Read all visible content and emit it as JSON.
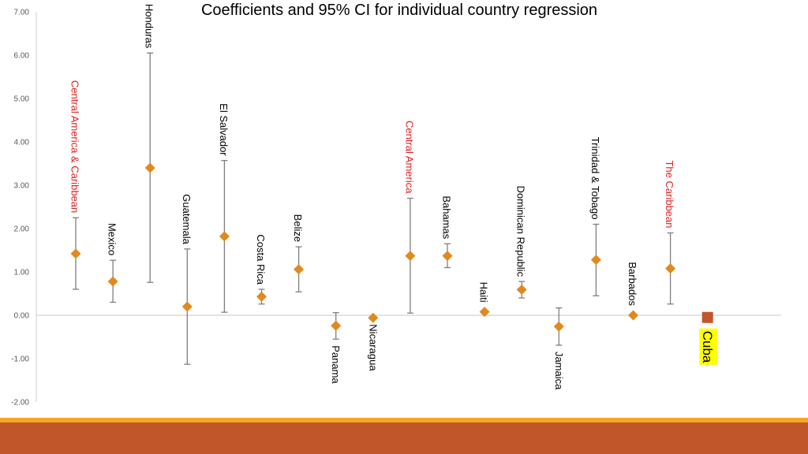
{
  "chart_data": {
    "type": "scatter",
    "title": "Coefficients and 95% CI for individual country regression",
    "xlabel": "",
    "ylabel": "",
    "ylim": [
      -2,
      7
    ],
    "yticks": [
      "7.00",
      "6.00",
      "5.00",
      "4.00",
      "3.00",
      "2.00",
      "1.00",
      "0.00",
      "-1.00",
      "-2.00"
    ],
    "grid": false,
    "colors": {
      "point": "#e08a1e",
      "errorbar": "#7f7f7f",
      "group_label": "#e02020",
      "cuba_marker": "#c0562a",
      "cuba_highlight": "#ffff00"
    },
    "points": [
      {
        "label": "Central America  & Caribbean",
        "value": 1.42,
        "low": 0.6,
        "high": 2.25,
        "group": true
      },
      {
        "label": "Mexico",
        "value": 0.78,
        "low": 0.3,
        "high": 1.27
      },
      {
        "label": "Honduras",
        "value": 3.4,
        "low": 0.76,
        "high": 6.05
      },
      {
        "label": "Guatemala",
        "value": 0.2,
        "low": -1.13,
        "high": 1.53
      },
      {
        "label": "El Salvador",
        "value": 1.82,
        "low": 0.07,
        "high": 3.57
      },
      {
        "label": "Costa Rica",
        "value": 0.43,
        "low": 0.26,
        "high": 0.6
      },
      {
        "label": "Belize",
        "value": 1.06,
        "low": 0.54,
        "high": 1.58
      },
      {
        "label": "Panama",
        "value": -0.24,
        "low": -0.55,
        "high": 0.06
      },
      {
        "label": "Nicaragua",
        "value": -0.06,
        "low": null,
        "high": null
      },
      {
        "label": "Central America",
        "value": 1.37,
        "low": 0.05,
        "high": 2.7,
        "group": true
      },
      {
        "label": "Bahamas",
        "value": 1.37,
        "low": 1.1,
        "high": 1.65
      },
      {
        "label": "Haiti",
        "value": 0.08,
        "low": null,
        "high": null
      },
      {
        "label": "Dominican Republic",
        "value": 0.59,
        "low": 0.4,
        "high": 0.78
      },
      {
        "label": "Jamaica",
        "value": -0.26,
        "low": -0.69,
        "high": 0.17
      },
      {
        "label": "Trinidad & Tobago",
        "value": 1.28,
        "low": 0.45,
        "high": 2.1
      },
      {
        "label": "Barbados",
        "value": 0.0,
        "low": null,
        "high": null
      },
      {
        "label": "The Caribbean",
        "value": 1.08,
        "low": 0.26,
        "high": 1.9,
        "group": true
      },
      {
        "label": "Cuba",
        "value": -0.05,
        "low": null,
        "high": null,
        "highlight": true
      }
    ]
  }
}
